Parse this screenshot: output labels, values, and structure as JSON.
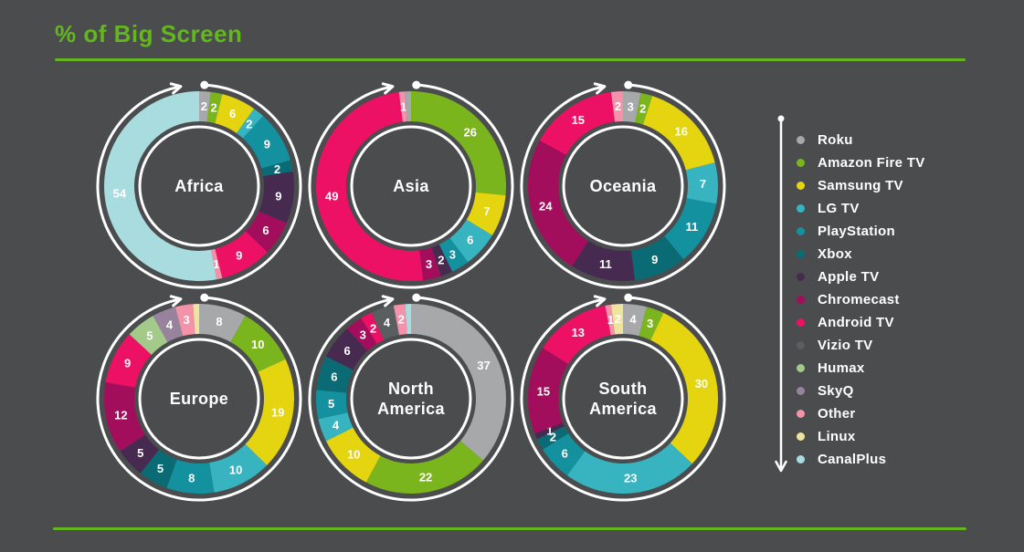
{
  "title": "% of Big Screen",
  "theme": {
    "background": "#4a4c4e",
    "green": "#63b71d",
    "white": "#ffffff"
  },
  "devices": [
    {
      "name": "Roku",
      "color": "#a6a8aa"
    },
    {
      "name": "Amazon Fire TV",
      "color": "#7ab51d"
    },
    {
      "name": "Samsung TV",
      "color": "#e5d410"
    },
    {
      "name": "LG TV",
      "color": "#38b4c0"
    },
    {
      "name": "PlayStation",
      "color": "#13919f"
    },
    {
      "name": "Xbox",
      "color": "#0b6b75"
    },
    {
      "name": "Apple TV",
      "color": "#472a50"
    },
    {
      "name": "Chromecast",
      "color": "#a20e5c"
    },
    {
      "name": "Android TV",
      "color": "#ec1164"
    },
    {
      "name": "Vizio TV",
      "color": "#5a5e61"
    },
    {
      "name": "Humax",
      "color": "#a4ca8a"
    },
    {
      "name": "SkyQ",
      "color": "#98839d"
    },
    {
      "name": "Other",
      "color": "#f492aa"
    },
    {
      "name": "Linux",
      "color": "#efe49e"
    },
    {
      "name": "CanalPlus",
      "color": "#a9dcdf"
    }
  ],
  "chart_data": [
    {
      "type": "donut",
      "region": "Africa",
      "center_lines": [
        "Africa"
      ],
      "segments": [
        {
          "device": "Roku",
          "value": 2
        },
        {
          "device": "Amazon Fire TV",
          "value": 2
        },
        {
          "device": "Samsung TV",
          "value": 6
        },
        {
          "device": "LG TV",
          "value": 2
        },
        {
          "device": "PlayStation",
          "value": 9
        },
        {
          "device": "Xbox",
          "value": 2
        },
        {
          "device": "Apple TV",
          "value": 9
        },
        {
          "device": "Chromecast",
          "value": 6
        },
        {
          "device": "Android TV",
          "value": 9
        },
        {
          "device": "Other",
          "value": 1
        },
        {
          "device": "CanalPlus",
          "value": 54
        }
      ]
    },
    {
      "type": "donut",
      "region": "Asia",
      "center_lines": [
        "Asia"
      ],
      "segments": [
        {
          "device": "Amazon Fire TV",
          "value": 26
        },
        {
          "device": "Samsung TV",
          "value": 7
        },
        {
          "device": "LG TV",
          "value": 6
        },
        {
          "device": "PlayStation",
          "value": 3
        },
        {
          "device": "Apple TV",
          "value": 2
        },
        {
          "device": "Chromecast",
          "value": 3
        },
        {
          "device": "Android TV",
          "value": 49
        },
        {
          "device": "Other",
          "value": 1
        },
        {
          "device": "Roku",
          "value": 1,
          "label": ""
        }
      ]
    },
    {
      "type": "donut",
      "region": "Oceania",
      "center_lines": [
        "Oceania"
      ],
      "segments": [
        {
          "device": "Roku",
          "value": 3
        },
        {
          "device": "Amazon Fire TV",
          "value": 2
        },
        {
          "device": "Samsung TV",
          "value": 16
        },
        {
          "device": "LG TV",
          "value": 7
        },
        {
          "device": "PlayStation",
          "value": 11
        },
        {
          "device": "Xbox",
          "value": 9
        },
        {
          "device": "Apple TV",
          "value": 11
        },
        {
          "device": "Chromecast",
          "value": 24
        },
        {
          "device": "Android TV",
          "value": 15
        },
        {
          "device": "Other",
          "value": 2
        }
      ]
    },
    {
      "type": "donut",
      "region": "Europe",
      "center_lines": [
        "Europe"
      ],
      "segments": [
        {
          "device": "Roku",
          "value": 8
        },
        {
          "device": "Amazon Fire TV",
          "value": 10
        },
        {
          "device": "Samsung TV",
          "value": 19
        },
        {
          "device": "LG TV",
          "value": 10
        },
        {
          "device": "PlayStation",
          "value": 8
        },
        {
          "device": "Xbox",
          "value": 5
        },
        {
          "device": "Apple TV",
          "value": 5
        },
        {
          "device": "Chromecast",
          "value": 12
        },
        {
          "device": "Android TV",
          "value": 9
        },
        {
          "device": "Humax",
          "value": 5
        },
        {
          "device": "SkyQ",
          "value": 4
        },
        {
          "device": "Other",
          "value": 3
        },
        {
          "device": "Linux",
          "value": 1,
          "label": ""
        }
      ]
    },
    {
      "type": "donut",
      "region": "North America",
      "center_lines": [
        "North",
        "America"
      ],
      "segments": [
        {
          "device": "Roku",
          "value": 37
        },
        {
          "device": "Amazon Fire TV",
          "value": 22
        },
        {
          "device": "Samsung TV",
          "value": 10
        },
        {
          "device": "LG TV",
          "value": 4
        },
        {
          "device": "PlayStation",
          "value": 5
        },
        {
          "device": "Xbox",
          "value": 6
        },
        {
          "device": "Apple TV",
          "value": 6
        },
        {
          "device": "Chromecast",
          "value": 3
        },
        {
          "device": "Android TV",
          "value": 2
        },
        {
          "device": "Vizio TV",
          "value": 4
        },
        {
          "device": "Other",
          "value": 2
        },
        {
          "device": "CanalPlus",
          "value": 1,
          "label": ""
        }
      ]
    },
    {
      "type": "donut",
      "region": "South America",
      "center_lines": [
        "South",
        "America"
      ],
      "segments": [
        {
          "device": "Roku",
          "value": 4
        },
        {
          "device": "Amazon Fire TV",
          "value": 3
        },
        {
          "device": "Samsung TV",
          "value": 30
        },
        {
          "device": "LG TV",
          "value": 23
        },
        {
          "device": "PlayStation",
          "value": 6
        },
        {
          "device": "Xbox",
          "value": 2
        },
        {
          "device": "Apple TV",
          "value": 1
        },
        {
          "device": "Chromecast",
          "value": 15
        },
        {
          "device": "Android TV",
          "value": 13
        },
        {
          "device": "Other",
          "value": 1
        },
        {
          "device": "Linux",
          "value": 2
        }
      ]
    }
  ]
}
